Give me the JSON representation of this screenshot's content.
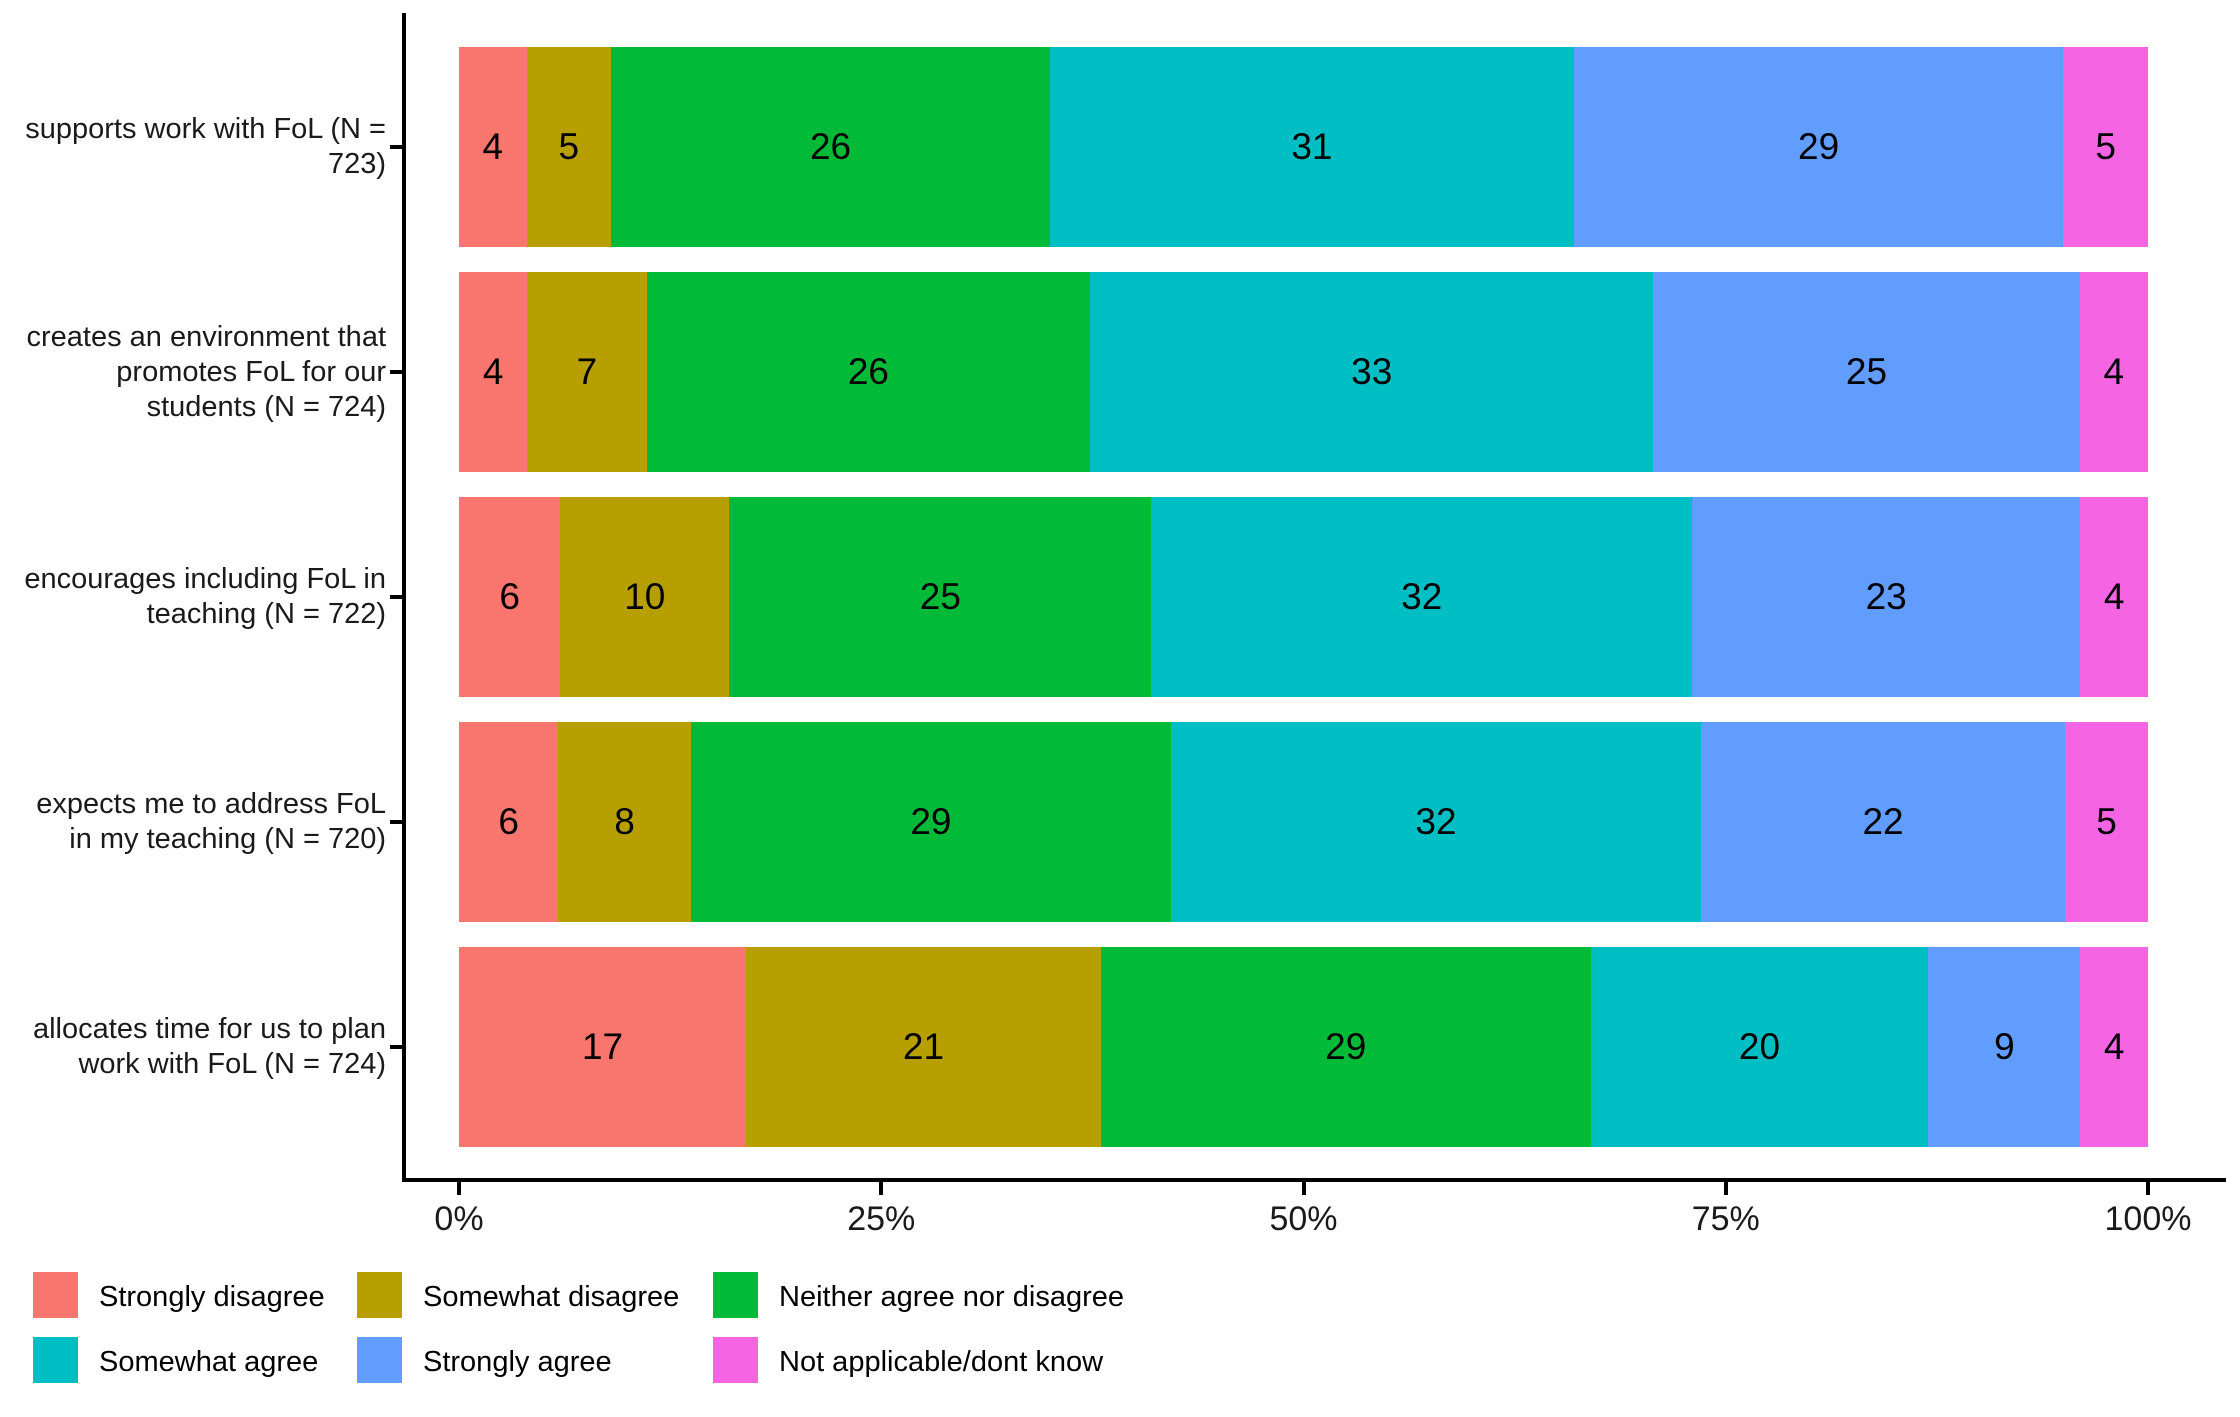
{
  "chart_data": {
    "type": "bar",
    "orientation": "horizontal",
    "stacked": true,
    "units": "percent",
    "title": "",
    "xlabel": "",
    "ylabel": "",
    "xlim": [
      0,
      100
    ],
    "x_ticks": [
      "0%",
      "25%",
      "50%",
      "75%",
      "100%"
    ],
    "x_tick_values": [
      0,
      25,
      50,
      75,
      100
    ],
    "grid": false,
    "legend_position": "bottom",
    "categories": [
      "supports work with FoL (N = 723)",
      "creates an environment that promotes FoL for our students (N = 724)",
      "encourages including FoL in teaching (N = 722)",
      "expects me to address FoL in my teaching (N = 720)",
      "allocates time for us to plan work with FoL (N = 724)"
    ],
    "series": [
      {
        "name": "Strongly disagree",
        "color": "#F8766D",
        "values": [
          4,
          4,
          6,
          6,
          17
        ]
      },
      {
        "name": "Somewhat disagree",
        "color": "#B79F00",
        "values": [
          5,
          7,
          10,
          8,
          21
        ]
      },
      {
        "name": "Neither agree nor disagree",
        "color": "#00BA38",
        "values": [
          26,
          26,
          25,
          29,
          29
        ]
      },
      {
        "name": "Somewhat agree",
        "color": "#00BFC4",
        "values": [
          31,
          33,
          32,
          32,
          20
        ]
      },
      {
        "name": "Strongly agree",
        "color": "#619CFF",
        "values": [
          29,
          25,
          23,
          22,
          9
        ]
      },
      {
        "name": "Not applicable/dont know",
        "color": "#F564E3",
        "values": [
          5,
          4,
          4,
          5,
          4
        ]
      }
    ],
    "bar_label_color": "#000000",
    "axis_color": "#000000"
  }
}
